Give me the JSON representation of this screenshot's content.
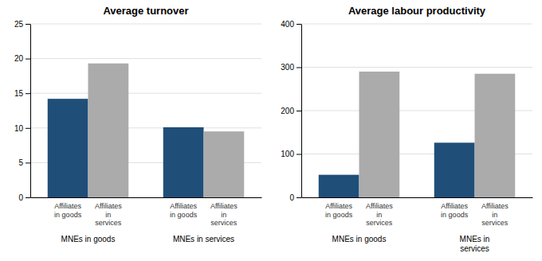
{
  "chart_data": [
    {
      "type": "bar",
      "title": "Average turnover",
      "categories": [
        "MNEs in goods",
        "MNEs in services"
      ],
      "series": [
        {
          "name": "Affiliates\nin goods",
          "color": "#1F4E79",
          "values": [
            14.2,
            10.1
          ]
        },
        {
          "name": "Affiliates\nin\nservices",
          "color": "#ABABAB",
          "values": [
            19.3,
            9.5
          ]
        }
      ],
      "ylim": [
        0,
        25
      ],
      "yticks": [
        0,
        5,
        10,
        15,
        20,
        25
      ],
      "grid": true
    },
    {
      "type": "bar",
      "title": "Average labour productivity",
      "categories": [
        "MNEs in goods",
        "MNEs in\nservices"
      ],
      "series": [
        {
          "name": "Affiliates\nin goods",
          "color": "#1F4E79",
          "values": [
            52,
            126
          ]
        },
        {
          "name": "Affiliates\nin\nservices",
          "color": "#ABABAB",
          "values": [
            290,
            285
          ]
        }
      ],
      "ylim": [
        0,
        400
      ],
      "yticks": [
        0,
        100,
        200,
        300,
        400
      ],
      "grid": true
    }
  ]
}
